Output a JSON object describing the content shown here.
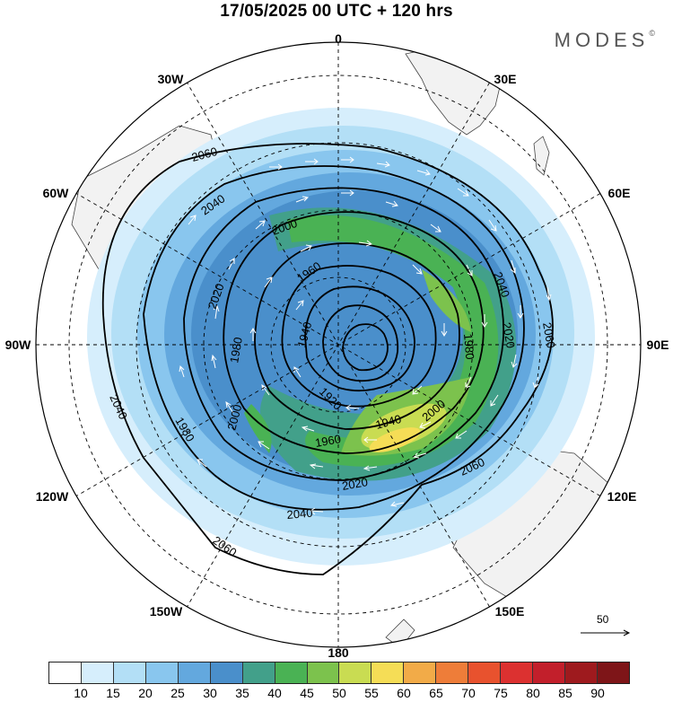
{
  "header": {
    "title": "17/05/2025  00 UTC  + 120 hrs",
    "brand": "MODES",
    "brand_mark": "©"
  },
  "map": {
    "projection": "polar stereographic, south pole",
    "longitude_labels": [
      "0",
      "30E",
      "60E",
      "90E",
      "120E",
      "150E",
      "180",
      "150W",
      "120W",
      "90W",
      "60W",
      "30W"
    ],
    "contour_labels": [
      "2060",
      "2040",
      "2020",
      "2000",
      "1980",
      "1960",
      "1940",
      "1920",
      "1900"
    ],
    "land_color": "#f2f2f2",
    "contour_color": "#000000",
    "vector_color": "#ffffff"
  },
  "reference_vector": {
    "value": "50"
  },
  "colorbar": {
    "labels": [
      "10",
      "15",
      "20",
      "25",
      "30",
      "35",
      "40",
      "45",
      "50",
      "55",
      "60",
      "65",
      "70",
      "75",
      "80",
      "85",
      "90"
    ],
    "colors": [
      "#ffffff",
      "#d6eefc",
      "#b3dff6",
      "#89c6ee",
      "#63a8de",
      "#4a8fcb",
      "#42a08a",
      "#4ab254",
      "#7cc24d",
      "#c9dc52",
      "#f5dd56",
      "#f2ab48",
      "#ee7d39",
      "#e8522e",
      "#dc3130",
      "#c21f2b",
      "#9e1a1e",
      "#7e1518"
    ]
  }
}
